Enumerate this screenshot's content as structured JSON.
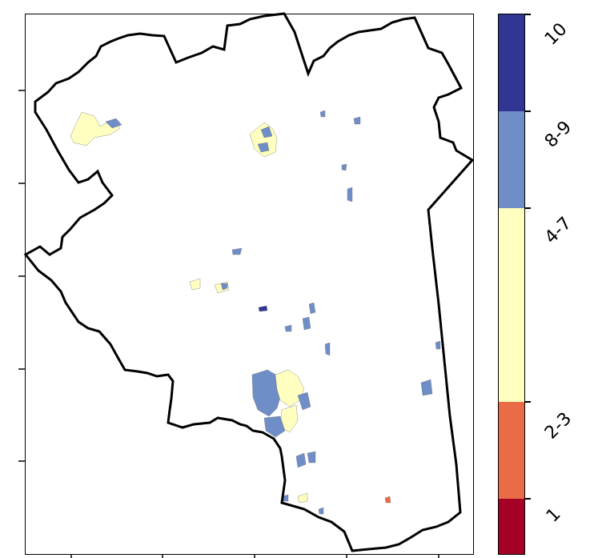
{
  "map": {
    "boundary_color": "#000000",
    "background": "#ffffff"
  },
  "legend": {
    "classes": [
      {
        "label": "10",
        "color": "#313695"
      },
      {
        "label": "8-9",
        "color": "#6f8dc6"
      },
      {
        "label": "4-7",
        "color": "#ffffbf"
      },
      {
        "label": "2-3",
        "color": "#ea6c46"
      },
      {
        "label": "1",
        "color": "#a50026"
      }
    ]
  }
}
